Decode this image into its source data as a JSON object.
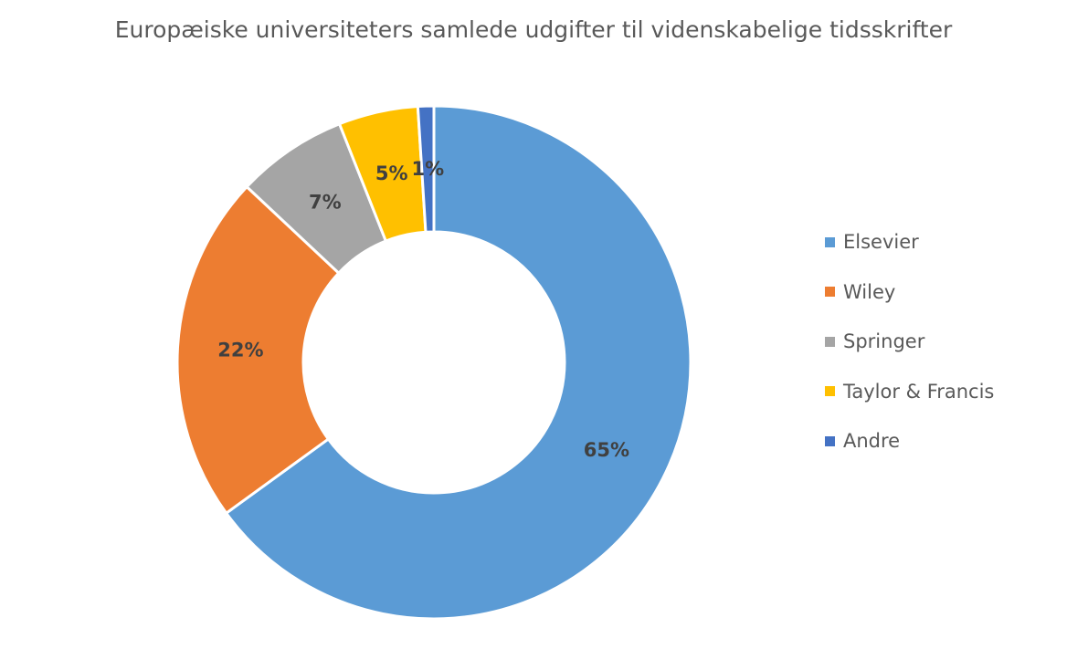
{
  "chart_data": {
    "type": "pie",
    "variant": "donut",
    "title": "Europæiske universiteters samlede udgifter til videnskabelige tidsskrifter",
    "categories": [
      "Elsevier",
      "Wiley",
      "Springer",
      "Taylor & Francis",
      "Andre"
    ],
    "values": [
      65,
      22,
      7,
      5,
      1
    ],
    "labels": [
      "65%",
      "22%",
      "7%",
      "5%",
      "1%"
    ],
    "colors": [
      "#5b9bd5",
      "#ed7d31",
      "#a5a5a5",
      "#ffc000",
      "#4472c4"
    ],
    "legend_position": "right"
  }
}
